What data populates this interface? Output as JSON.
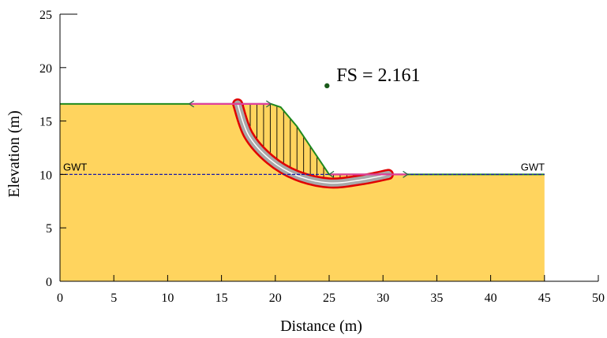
{
  "chart_data": {
    "type": "diagram",
    "xlabel": "Distance (m)",
    "ylabel": "Elevation (m)",
    "xlim": [
      0,
      50
    ],
    "ylim": [
      0,
      25
    ],
    "x_ticks": [
      "0",
      "5",
      "10",
      "15",
      "20",
      "25",
      "30",
      "35",
      "40",
      "45",
      "50"
    ],
    "y_ticks": [
      "0",
      "5",
      "10",
      "15",
      "20",
      "25"
    ],
    "annotation": "FS = 2.161",
    "gwt_label_left": "GWT",
    "gwt_label_right": "GWT",
    "slip_center": [
      24.8,
      18.3
    ],
    "ground_profile": [
      [
        0,
        16.6
      ],
      [
        19.6,
        16.6
      ],
      [
        20.5,
        16.3
      ],
      [
        22,
        14.5
      ],
      [
        25,
        10
      ],
      [
        45,
        10
      ],
      [
        45,
        0
      ],
      [
        0,
        0
      ]
    ],
    "water_table_elevation": 10,
    "slip_surface": [
      [
        16.5,
        16.6
      ],
      [
        17.5,
        13.7
      ],
      [
        19.5,
        11.4
      ],
      [
        22,
        9.9
      ],
      [
        25,
        9.2
      ],
      [
        28,
        9.5
      ],
      [
        30.5,
        10
      ]
    ],
    "entry_range": [
      12,
      19.6
    ],
    "exit_range": [
      25,
      32.3
    ],
    "colors": {
      "soil": "#ffd45e",
      "ground_line": "#1f8a1f",
      "water_line": "#1a1aa8",
      "slip_red": "#e00000",
      "slip_grey": "#a8a8a8",
      "range_marker": "#e0409a",
      "center_marker": "#1a5a1a"
    }
  }
}
